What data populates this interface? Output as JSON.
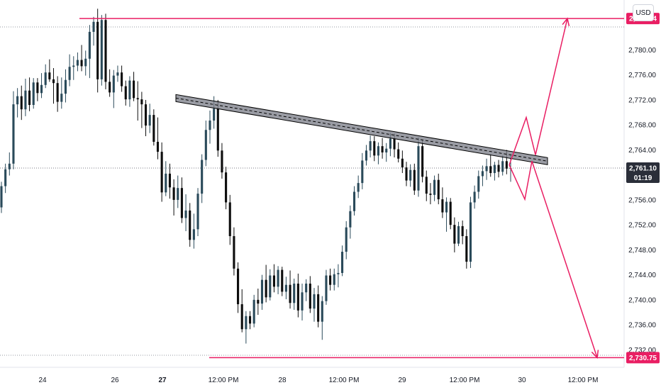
{
  "currency": "USD",
  "chart_data": {
    "type": "candlestick",
    "y_ticks": [
      "2,780.00",
      "2,776.00",
      "2,772.00",
      "2,768.00",
      "2,764.00",
      "2,756.00",
      "2,752.00",
      "2,748.00",
      "2,744.00",
      "2,740.00",
      "2,736.00",
      "2,732.00"
    ],
    "y_tick_values": [
      2780,
      2776,
      2772,
      2768,
      2764,
      2756,
      2752,
      2748,
      2744,
      2740,
      2736,
      2732
    ],
    "ylim": [
      2729.2,
      2788.0
    ],
    "x_ticks": [
      {
        "label": "24",
        "bold": false
      },
      {
        "label": "26",
        "bold": false
      },
      {
        "label": "27",
        "bold": true
      },
      {
        "label": "12:00 PM",
        "bold": false
      },
      {
        "label": "28",
        "bold": false
      },
      {
        "label": "12:00 PM",
        "bold": false
      },
      {
        "label": "29",
        "bold": false
      },
      {
        "label": "12:00 PM",
        "bold": false
      },
      {
        "label": "30",
        "bold": false
      },
      {
        "label": "12:00 PM",
        "bold": false
      }
    ],
    "current_price": {
      "value": 2761.1,
      "label": "2,761.10",
      "countdown": "01:19"
    },
    "levels": [
      {
        "value": 2785.04,
        "label": "2,785.04",
        "color": "#e91e63"
      },
      {
        "value": 2730.75,
        "label": "2,730.75",
        "color": "#e91e63"
      }
    ],
    "trendline": {
      "start_price": 2772.3,
      "end_price": 2762.2,
      "color": "#000000",
      "fill": "#787b86"
    },
    "projection": {
      "color": "#e91e63",
      "up_target": 2785.04,
      "down_target": 2730.75
    },
    "candle_colors": {
      "up": "#2a4a5a",
      "down": "#0d0d0d"
    },
    "candles": [
      [
        2754.8,
        2758.9,
        2753.9,
        2758.2
      ],
      [
        2758.2,
        2761.8,
        2757.1,
        2760.9
      ],
      [
        2760.9,
        2763.6,
        2759.9,
        2761.8
      ],
      [
        2761.8,
        2773.4,
        2760.9,
        2771.3
      ],
      [
        2771.3,
        2773.9,
        2769.2,
        2772.6
      ],
      [
        2772.6,
        2774.3,
        2768.8,
        2770.5
      ],
      [
        2770.5,
        2775.4,
        2769.4,
        2773.5
      ],
      [
        2773.5,
        2775.6,
        2770.2,
        2771.2
      ],
      [
        2771.2,
        2775.5,
        2770.6,
        2774.8
      ],
      [
        2774.8,
        2775.5,
        2771.8,
        2773.1
      ],
      [
        2773.1,
        2776.3,
        2772.3,
        2774.4
      ],
      [
        2774.4,
        2777.7,
        2773.9,
        2776.4
      ],
      [
        2776.4,
        2778.5,
        2774.9,
        2775.3
      ],
      [
        2775.3,
        2777.1,
        2771.4,
        2774.7
      ],
      [
        2774.7,
        2775.8,
        2770.1,
        2771.7
      ],
      [
        2771.7,
        2775.6,
        2770.6,
        2773.0
      ],
      [
        2773.0,
        2776.9,
        2771.6,
        2775.2
      ],
      [
        2775.2,
        2779.3,
        2774.2,
        2777.3
      ],
      [
        2777.3,
        2779.0,
        2775.2,
        2777.5
      ],
      [
        2777.5,
        2779.6,
        2776.6,
        2778.4
      ],
      [
        2778.4,
        2780.8,
        2776.6,
        2777.4
      ],
      [
        2777.4,
        2779.9,
        2775.9,
        2778.6
      ],
      [
        2778.6,
        2784.0,
        2775.5,
        2782.9
      ],
      [
        2782.9,
        2785.3,
        2780.7,
        2784.5
      ],
      [
        2784.5,
        2786.6,
        2773.2,
        2775.3
      ],
      [
        2775.3,
        2785.6,
        2774.3,
        2784.8
      ],
      [
        2784.8,
        2785.8,
        2773.7,
        2774.9
      ],
      [
        2774.9,
        2776.9,
        2772.5,
        2773.2
      ],
      [
        2773.2,
        2776.8,
        2770.7,
        2775.9
      ],
      [
        2775.9,
        2777.5,
        2774.9,
        2776.4
      ],
      [
        2776.4,
        2777.5,
        2773.3,
        2774.2
      ],
      [
        2774.2,
        2775.1,
        2771.1,
        2772.1
      ],
      [
        2772.1,
        2775.8,
        2770.9,
        2775.1
      ],
      [
        2775.1,
        2776.5,
        2771.8,
        2772.3
      ],
      [
        2772.3,
        2775.0,
        2768.7,
        2772.1
      ],
      [
        2772.1,
        2773.3,
        2767.5,
        2771.3
      ],
      [
        2771.3,
        2772.0,
        2766.2,
        2767.9
      ],
      [
        2767.9,
        2771.4,
        2766.7,
        2769.6
      ],
      [
        2769.6,
        2770.5,
        2764.7,
        2765.3
      ],
      [
        2765.3,
        2769.2,
        2762.5,
        2763.7
      ],
      [
        2763.7,
        2765.2,
        2755.7,
        2757.2
      ],
      [
        2757.2,
        2762.2,
        2756.6,
        2760.2
      ],
      [
        2760.2,
        2761.8,
        2756.2,
        2758.0
      ],
      [
        2758.0,
        2759.3,
        2753.5,
        2756.0
      ],
      [
        2756.0,
        2759.9,
        2754.7,
        2757.9
      ],
      [
        2757.9,
        2759.6,
        2752.3,
        2753.1
      ],
      [
        2753.1,
        2756.9,
        2751.0,
        2754.3
      ],
      [
        2754.3,
        2755.5,
        2748.5,
        2749.6
      ],
      [
        2749.6,
        2753.8,
        2748.2,
        2751.3
      ],
      [
        2751.3,
        2757.9,
        2750.2,
        2757.0
      ],
      [
        2757.0,
        2763.3,
        2755.5,
        2762.4
      ],
      [
        2762.4,
        2768.7,
        2761.4,
        2767.2
      ],
      [
        2767.2,
        2770.3,
        2765.0,
        2768.7
      ],
      [
        2768.7,
        2772.6,
        2767.4,
        2770.6
      ],
      [
        2770.6,
        2772.0,
        2762.9,
        2763.9
      ],
      [
        2763.9,
        2765.1,
        2759.4,
        2760.4
      ],
      [
        2760.4,
        2761.3,
        2754.5,
        2755.6
      ],
      [
        2755.6,
        2756.8,
        2748.8,
        2750.2
      ],
      [
        2750.2,
        2751.6,
        2743.9,
        2745.0
      ],
      [
        2745.0,
        2746.0,
        2737.9,
        2739.3
      ],
      [
        2739.3,
        2741.7,
        2734.8,
        2735.3
      ],
      [
        2735.3,
        2738.2,
        2733.0,
        2737.4
      ],
      [
        2737.4,
        2738.2,
        2735.3,
        2736.2
      ],
      [
        2736.2,
        2740.8,
        2735.6,
        2740.0
      ],
      [
        2740.0,
        2741.8,
        2737.6,
        2739.4
      ],
      [
        2739.4,
        2744.0,
        2738.4,
        2743.2
      ],
      [
        2743.2,
        2745.6,
        2739.6,
        2740.4
      ],
      [
        2740.4,
        2744.9,
        2739.9,
        2743.9
      ],
      [
        2743.9,
        2745.7,
        2741.2,
        2742.1
      ],
      [
        2742.1,
        2745.4,
        2740.9,
        2744.8
      ],
      [
        2744.8,
        2745.3,
        2740.6,
        2741.3
      ],
      [
        2741.3,
        2743.7,
        2740.1,
        2742.4
      ],
      [
        2742.4,
        2744.7,
        2738.6,
        2739.5
      ],
      [
        2739.5,
        2743.4,
        2738.4,
        2742.6
      ],
      [
        2742.6,
        2744.2,
        2737.2,
        2738.3
      ],
      [
        2738.3,
        2742.6,
        2736.7,
        2741.2
      ],
      [
        2741.2,
        2743.3,
        2739.8,
        2742.6
      ],
      [
        2742.6,
        2743.8,
        2737.9,
        2738.6
      ],
      [
        2738.6,
        2741.9,
        2736.5,
        2740.9
      ],
      [
        2740.9,
        2742.3,
        2735.6,
        2736.5
      ],
      [
        2736.5,
        2740.6,
        2733.6,
        2739.8
      ],
      [
        2739.8,
        2744.8,
        2739.2,
        2743.9
      ],
      [
        2743.9,
        2745.0,
        2741.5,
        2742.4
      ],
      [
        2742.4,
        2745.0,
        2741.5,
        2744.1
      ],
      [
        2744.1,
        2745.7,
        2742.0,
        2744.3
      ],
      [
        2744.3,
        2748.7,
        2743.8,
        2747.7
      ],
      [
        2747.7,
        2752.6,
        2746.5,
        2751.6
      ],
      [
        2751.6,
        2755.1,
        2749.8,
        2754.2
      ],
      [
        2754.2,
        2758.2,
        2753.5,
        2757.3
      ],
      [
        2757.3,
        2759.9,
        2756.3,
        2758.7
      ],
      [
        2758.7,
        2763.5,
        2757.7,
        2762.3
      ],
      [
        2762.3,
        2764.8,
        2761.5,
        2763.9
      ],
      [
        2763.9,
        2766.3,
        2762.8,
        2765.4
      ],
      [
        2765.4,
        2766.2,
        2762.2,
        2763.1
      ],
      [
        2763.1,
        2765.2,
        2761.7,
        2764.6
      ],
      [
        2764.6,
        2765.9,
        2762.6,
        2763.6
      ],
      [
        2763.6,
        2765.1,
        2762.1,
        2764.2
      ],
      [
        2764.2,
        2766.7,
        2763.0,
        2765.8
      ],
      [
        2765.8,
        2766.6,
        2762.8,
        2764.1
      ],
      [
        2764.1,
        2765.2,
        2762.0,
        2762.6
      ],
      [
        2762.6,
        2763.9,
        2760.3,
        2761.2
      ],
      [
        2761.2,
        2762.1,
        2758.2,
        2759.1
      ],
      [
        2759.1,
        2761.7,
        2758.1,
        2760.8
      ],
      [
        2760.8,
        2761.8,
        2756.8,
        2757.5
      ],
      [
        2757.5,
        2766.0,
        2756.5,
        2764.6
      ],
      [
        2764.6,
        2765.5,
        2758.8,
        2759.7
      ],
      [
        2759.7,
        2760.7,
        2755.8,
        2757.0
      ],
      [
        2757.0,
        2758.7,
        2755.3,
        2756.8
      ],
      [
        2756.8,
        2759.9,
        2755.8,
        2759.2
      ],
      [
        2759.2,
        2760.2,
        2755.3,
        2756.1
      ],
      [
        2756.1,
        2758.0,
        2753.1,
        2754.0
      ],
      [
        2754.0,
        2756.4,
        2750.9,
        2755.7
      ],
      [
        2755.7,
        2756.3,
        2751.3,
        2752.0
      ],
      [
        2752.0,
        2753.2,
        2747.6,
        2749.0
      ],
      [
        2749.0,
        2752.5,
        2748.6,
        2751.8
      ],
      [
        2751.8,
        2752.7,
        2748.9,
        2750.2
      ],
      [
        2750.2,
        2751.3,
        2745.0,
        2746.1
      ],
      [
        2746.1,
        2756.5,
        2745.1,
        2755.6
      ],
      [
        2755.6,
        2758.3,
        2754.6,
        2757.3
      ],
      [
        2757.3,
        2760.7,
        2756.2,
        2759.8
      ],
      [
        2759.8,
        2761.5,
        2758.2,
        2760.6
      ],
      [
        2760.6,
        2762.6,
        2759.2,
        2761.4
      ],
      [
        2761.4,
        2763.3,
        2759.7,
        2760.3
      ],
      [
        2760.3,
        2762.1,
        2759.1,
        2761.6
      ],
      [
        2761.6,
        2762.4,
        2759.6,
        2760.5
      ],
      [
        2760.5,
        2763.1,
        2759.9,
        2762.2
      ],
      [
        2762.2,
        2764.0,
        2760.1,
        2761.0
      ],
      [
        2761.0,
        2763.1,
        2758.9,
        2761.1
      ]
    ]
  }
}
